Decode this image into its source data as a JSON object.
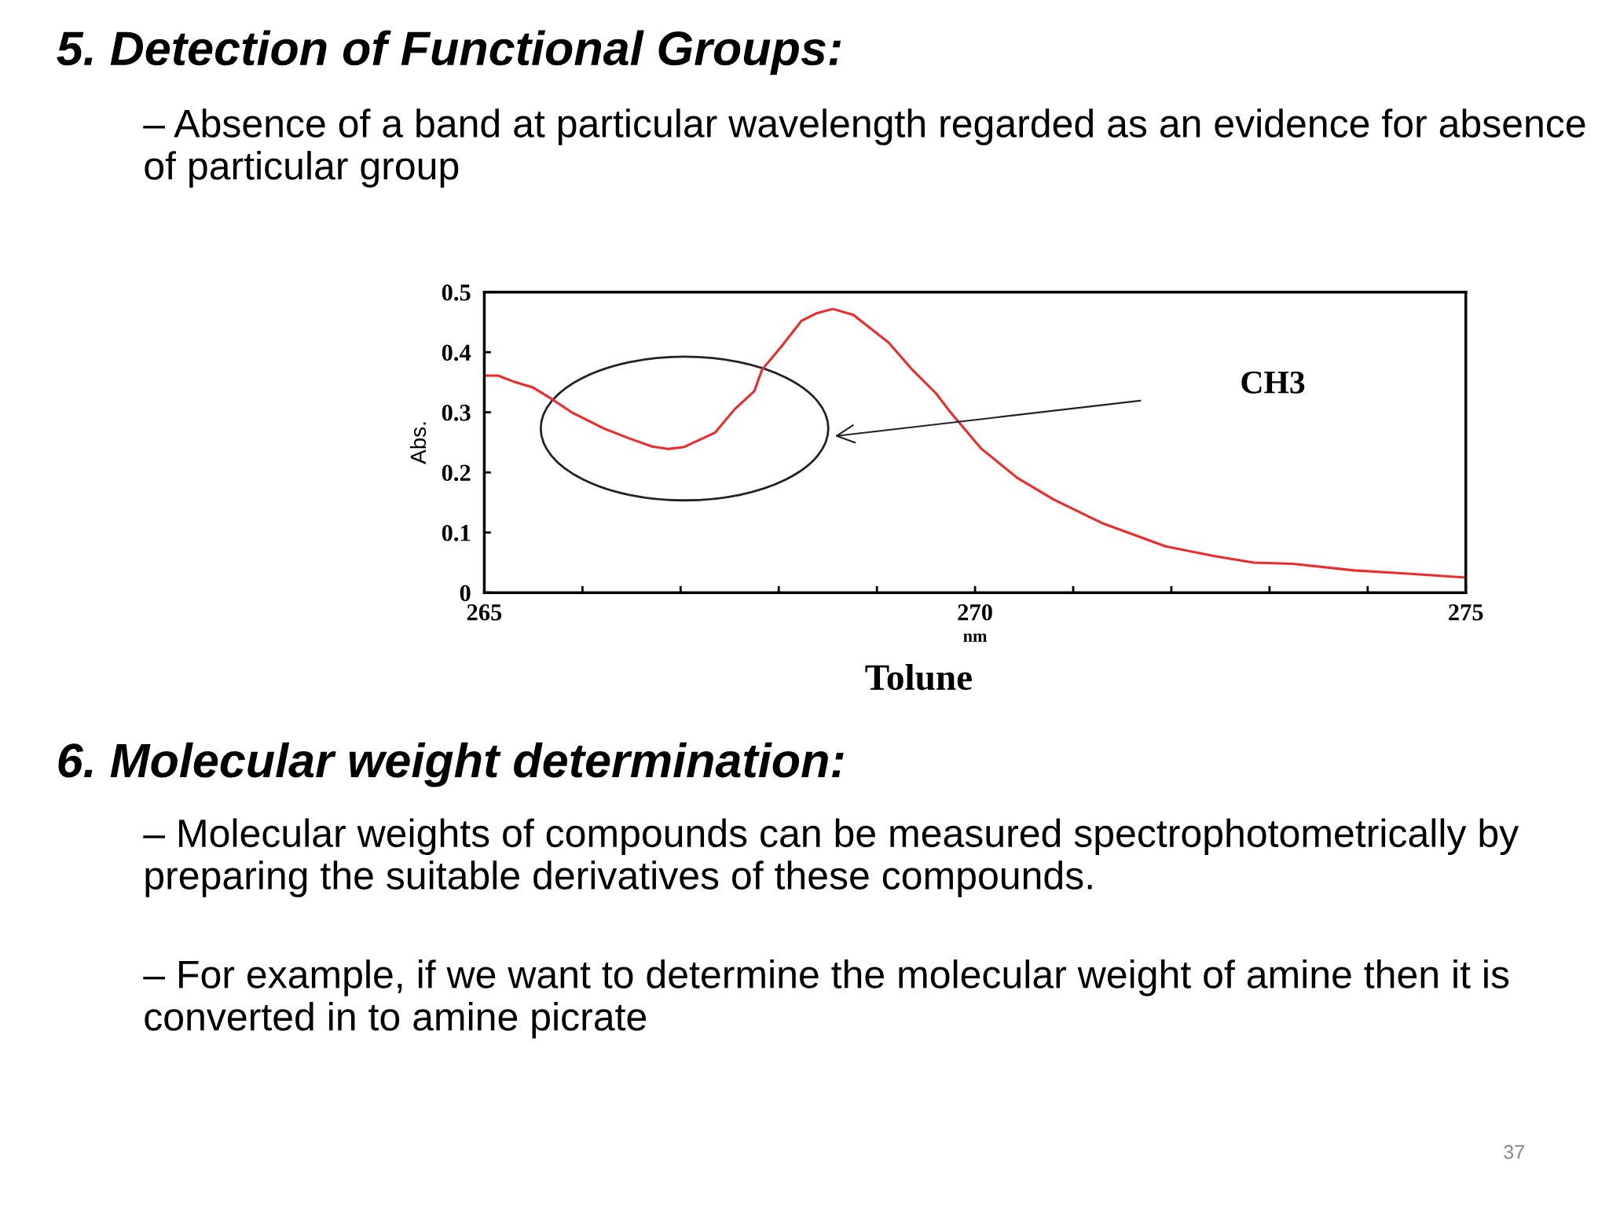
{
  "chart_data": {
    "type": "line",
    "title": "5. Detection of Functional Groups:",
    "subtitle": "– Absence of a band at particular wavelength regarded as an evidence for absence of particular group",
    "xlabel": "nm",
    "ylabel": "Abs.",
    "annotations": [
      "CH3",
      "Tolune",
      "6. Molecular weight determination:",
      "– Molecular weights of compounds can be measured spectrophotometrically by preparing the suitable derivatives of these compounds.",
      "– For example, if we want to determine the molecular weight of amine then it is converted in to amine picrate",
      "37"
    ],
    "series": [
      {
        "color": "#ee2b2b",
        "x": [
          265.02,
          265.14,
          265.3,
          265.5,
          265.66,
          265.9,
          266.22,
          266.47,
          266.71,
          266.87,
          267.03,
          267.35,
          267.55,
          267.75,
          267.83,
          268.03,
          268.23,
          268.39,
          268.55,
          268.76,
          269.12,
          269.36,
          269.6,
          269.74,
          270.06,
          270.43,
          270.8,
          271.29,
          271.94,
          272.43,
          272.84,
          273.24,
          273.86,
          274.47,
          275.0
        ],
        "values": [
          0.361,
          0.361,
          0.351,
          0.341,
          0.325,
          0.299,
          0.273,
          0.257,
          0.243,
          0.239,
          0.242,
          0.266,
          0.305,
          0.335,
          0.371,
          0.41,
          0.452,
          0.465,
          0.472,
          0.462,
          0.416,
          0.371,
          0.332,
          0.302,
          0.24,
          0.191,
          0.155,
          0.116,
          0.077,
          0.061,
          0.05,
          0.048,
          0.037,
          0.031,
          0.025
        ]
      }
    ],
    "xlim": [
      265,
      275
    ],
    "xticks": [
      265,
      {
        "value": 266,
        "label": null
      },
      {
        "value": 267,
        "label": null
      },
      {
        "value": 268,
        "label": null
      },
      {
        "value": 269,
        "label": null
      },
      270,
      {
        "value": 271,
        "label": null
      },
      {
        "value": 272,
        "label": null
      },
      {
        "value": 273,
        "label": null
      },
      {
        "value": 274,
        "label": null
      },
      275
    ],
    "ylim": [
      0,
      0.5
    ],
    "yticks": [
      0,
      0.1,
      0.2,
      0.3,
      0.4,
      0.5
    ],
    "grid": false,
    "legend": false,
    "marker": "none",
    "line_style": "solid"
  }
}
